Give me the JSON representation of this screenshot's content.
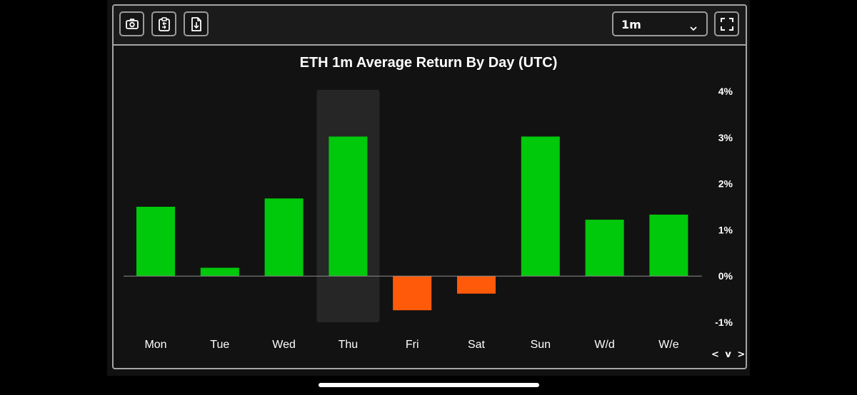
{
  "toolbar": {
    "timeframe_value": "1m"
  },
  "icons": [
    "camera-icon",
    "clipboard-icon",
    "download-file-icon",
    "chevron-down-icon",
    "fullscreen-icon"
  ],
  "nav": {
    "arrows_label": "< v >"
  },
  "colors": {
    "positive": "#00c80b",
    "negative": "#ff5a0a",
    "highlight": "#262626",
    "background": "#121212"
  },
  "chart_data": {
    "type": "bar",
    "title": "ETH 1m Average Return By Day (UTC)",
    "categories": [
      "Mon",
      "Tue",
      "Wed",
      "Thu",
      "Fri",
      "Sat",
      "Sun",
      "W/d",
      "W/e"
    ],
    "values": [
      1.5,
      0.18,
      1.68,
      3.02,
      -0.74,
      -0.38,
      3.02,
      1.22,
      1.33
    ],
    "ylim": [
      -1,
      4
    ],
    "yticks": [
      4,
      3,
      2,
      1,
      0,
      -1
    ],
    "ytick_labels": [
      "4%",
      "3%",
      "2%",
      "1%",
      "0%",
      "-1%"
    ],
    "y_axis_position": "right",
    "highlighted_category": "Thu",
    "grid": false
  }
}
